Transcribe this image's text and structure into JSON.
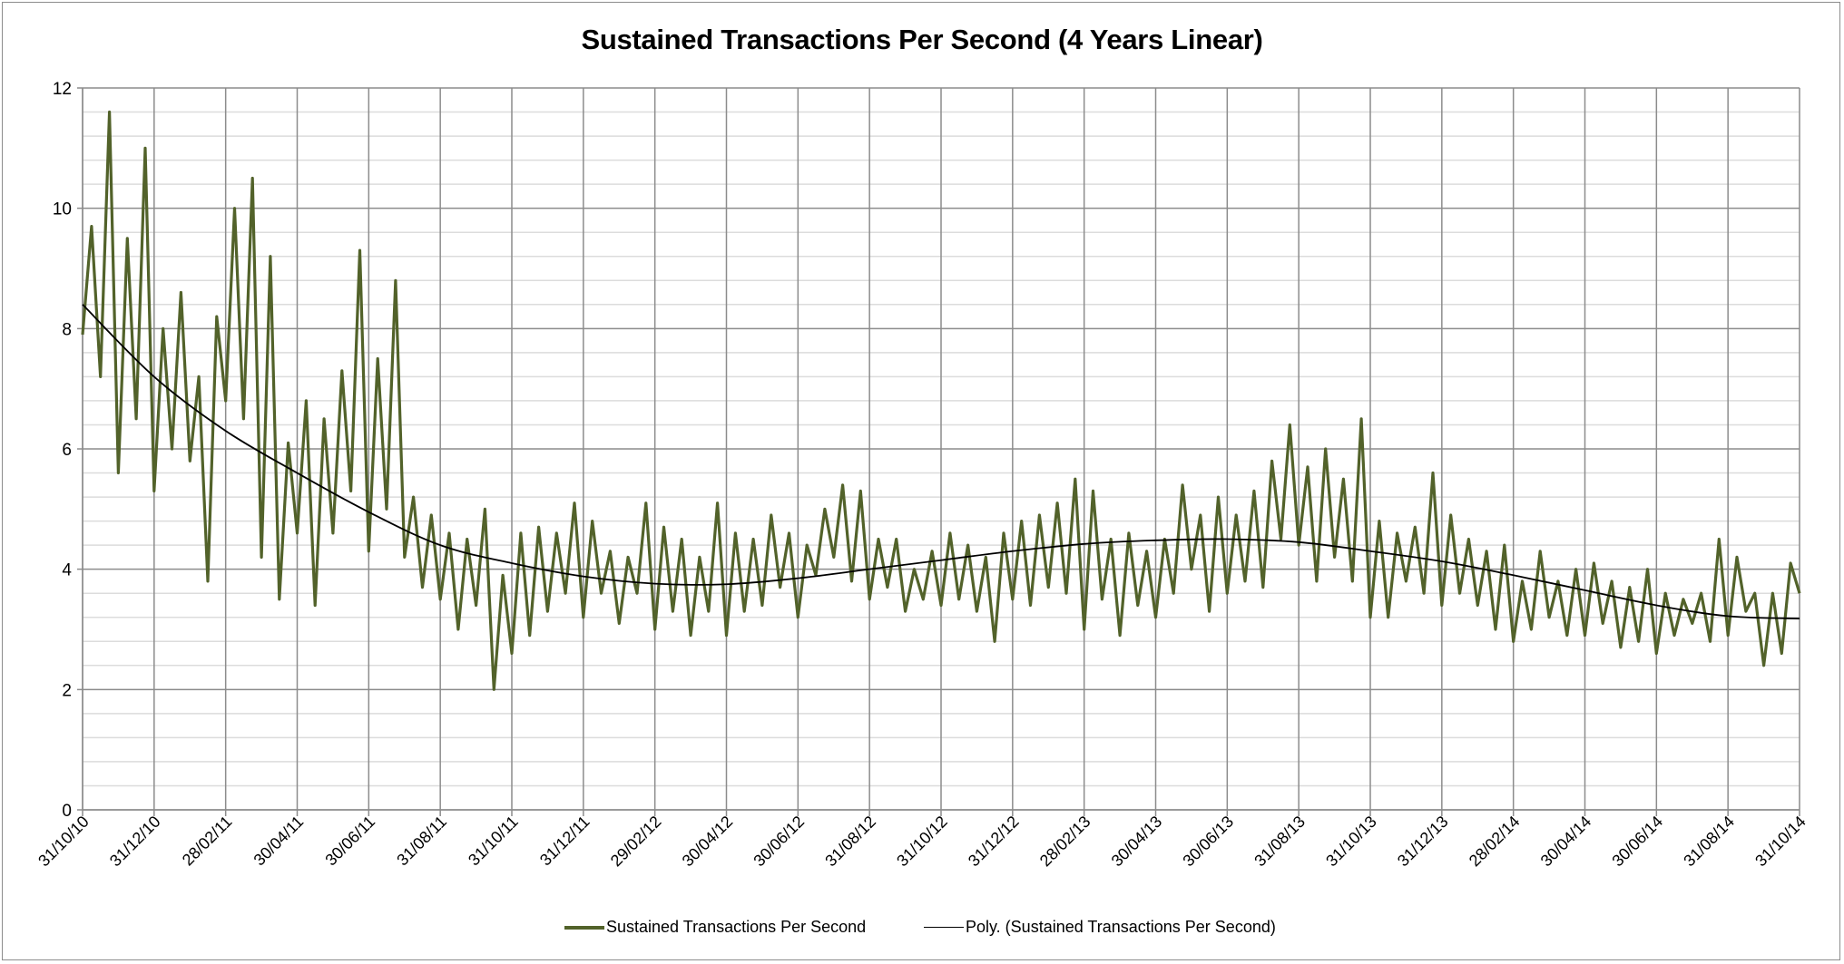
{
  "chart_data": {
    "type": "line",
    "title": "Sustained Transactions Per Second (4 Years Linear)",
    "xlabel": "",
    "ylabel": "",
    "ylim": [
      0,
      12
    ],
    "y_major_step": 2,
    "y_minor_step": 0.4,
    "y_ticks": [
      "0",
      "2",
      "4",
      "6",
      "8",
      "10",
      "12"
    ],
    "x_ticks": [
      "31/10/10",
      "31/12/10",
      "28/02/11",
      "30/04/11",
      "30/06/11",
      "31/08/11",
      "31/10/11",
      "31/12/11",
      "29/02/12",
      "30/04/12",
      "30/06/12",
      "31/08/12",
      "31/10/12",
      "31/12/12",
      "28/02/13",
      "30/04/13",
      "30/06/13",
      "31/08/13",
      "31/10/13",
      "31/12/13",
      "28/02/14",
      "30/04/14",
      "30/06/14",
      "31/08/14",
      "31/10/14"
    ],
    "xlim": [
      "31/10/10",
      "31/10/14"
    ],
    "grid": true,
    "legend_position": "bottom",
    "colors": {
      "series": "#52622a",
      "trend": "#000000",
      "major_grid": "#8c8c8c",
      "minor_grid": "#dcdcdc"
    },
    "series": [
      {
        "name": "Sustained Transactions Per Second",
        "values": [
          7.9,
          9.7,
          7.2,
          11.6,
          5.6,
          9.5,
          6.5,
          11.0,
          5.3,
          8.0,
          6.0,
          8.6,
          5.8,
          7.2,
          3.8,
          8.2,
          6.8,
          10.0,
          6.5,
          10.5,
          4.2,
          9.2,
          3.5,
          6.1,
          4.6,
          6.8,
          3.4,
          6.5,
          4.6,
          7.3,
          5.3,
          9.3,
          4.3,
          7.5,
          5.0,
          8.8,
          4.2,
          5.2,
          3.7,
          4.9,
          3.5,
          4.6,
          3.0,
          4.5,
          3.4,
          5.0,
          2.0,
          3.9,
          2.6,
          4.6,
          2.9,
          4.7,
          3.3,
          4.6,
          3.6,
          5.1,
          3.2,
          4.8,
          3.6,
          4.3,
          3.1,
          4.2,
          3.6,
          5.1,
          3.0,
          4.7,
          3.3,
          4.5,
          2.9,
          4.2,
          3.3,
          5.1,
          2.9,
          4.6,
          3.3,
          4.5,
          3.4,
          4.9,
          3.7,
          4.6,
          3.2,
          4.4,
          3.9,
          5.0,
          4.2,
          5.4,
          3.8,
          5.3,
          3.5,
          4.5,
          3.7,
          4.5,
          3.3,
          4.0,
          3.5,
          4.3,
          3.4,
          4.6,
          3.5,
          4.4,
          3.3,
          4.2,
          2.8,
          4.6,
          3.5,
          4.8,
          3.4,
          4.9,
          3.7,
          5.1,
          3.6,
          5.5,
          3.0,
          5.3,
          3.5,
          4.5,
          2.9,
          4.6,
          3.4,
          4.3,
          3.2,
          4.5,
          3.6,
          5.4,
          4.0,
          4.9,
          3.3,
          5.2,
          3.6,
          4.9,
          3.8,
          5.3,
          3.7,
          5.8,
          4.5,
          6.4,
          4.4,
          5.7,
          3.8,
          6.0,
          4.2,
          5.5,
          3.8,
          6.5,
          3.2,
          4.8,
          3.2,
          4.6,
          3.8,
          4.7,
          3.6,
          5.6,
          3.4,
          4.9,
          3.6,
          4.5,
          3.4,
          4.3,
          3.0,
          4.4,
          2.8,
          3.8,
          3.0,
          4.3,
          3.2,
          3.8,
          2.9,
          4.0,
          2.9,
          4.1,
          3.1,
          3.8,
          2.7,
          3.7,
          2.8,
          4.0,
          2.6,
          3.6,
          2.9,
          3.5,
          3.1,
          3.6,
          2.8,
          4.5,
          2.9,
          4.2,
          3.3,
          3.6,
          2.4,
          3.6,
          2.6,
          4.1,
          3.6
        ]
      },
      {
        "name": "Poly. (Sustained Transactions Per Second)",
        "values_at_ticks": [
          8.4,
          7.2,
          6.3,
          5.6,
          4.95,
          4.4,
          4.1,
          3.88,
          3.76,
          3.75,
          3.85,
          4.0,
          4.15,
          4.3,
          4.42,
          4.48,
          4.5,
          4.45,
          4.3,
          4.13,
          3.9,
          3.65,
          3.4,
          3.22,
          3.18
        ]
      }
    ]
  },
  "legend": {
    "series_label": "Sustained Transactions Per Second",
    "trend_label": "Poly. (Sustained Transactions Per Second)"
  }
}
